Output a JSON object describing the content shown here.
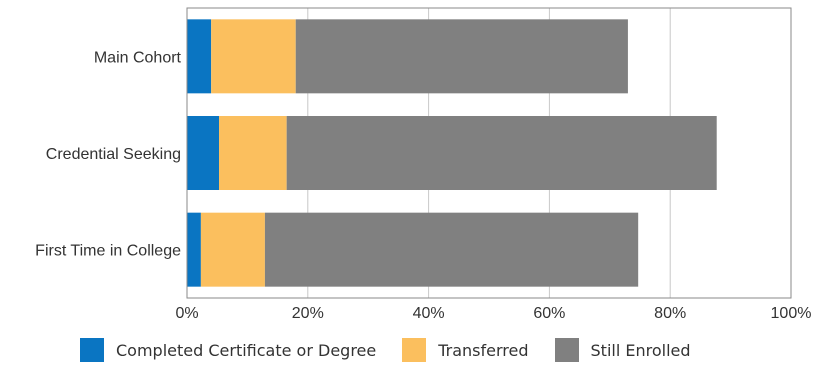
{
  "chart_data": {
    "type": "bar",
    "orientation": "horizontal",
    "stacked": true,
    "categories": [
      "Main Cohort",
      "Credential Seeking",
      "First Time in College"
    ],
    "series": [
      {
        "name": "Completed Certificate or Degree",
        "color": "#0a75c2",
        "values": [
          4,
          5.3,
          2.3
        ]
      },
      {
        "name": "Transferred",
        "color": "#fbbf5e",
        "values": [
          14,
          11.2,
          10.6
        ]
      },
      {
        "name": "Still Enrolled",
        "color": "#808080",
        "values": [
          55,
          71.2,
          61.8
        ]
      }
    ],
    "x_ticks": [
      "0%",
      "20%",
      "40%",
      "60%",
      "80%",
      "100%"
    ],
    "xlim": [
      0,
      100
    ],
    "grid": "vertical",
    "legend_position": "bottom"
  }
}
